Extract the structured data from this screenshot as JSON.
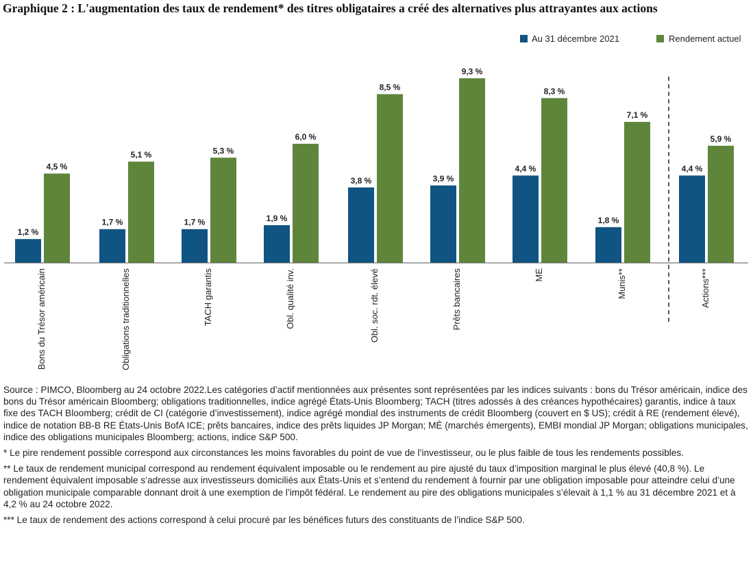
{
  "title": "Graphique 2 : L'augmentation des taux de rendement* des titres obligataires a créé des alternatives plus attrayantes aux actions",
  "colors": {
    "series1": "#0f5482",
    "series2": "#5f853b"
  },
  "chart_data": {
    "type": "bar",
    "categories": [
      "Bons du Trésor américain",
      "Obligations traditionnelles",
      "TACH garantis",
      "Obl. qualité inv.",
      "Obl. soc. rdt. élevé",
      "Prêts bancaires",
      "ME",
      "Munis**",
      "Actions***"
    ],
    "series": [
      {
        "name": "Au 31 décembre 2021",
        "values": [
          1.2,
          1.7,
          1.7,
          1.9,
          3.8,
          3.9,
          4.4,
          1.8,
          4.4
        ],
        "labels": [
          "1,2 %",
          "1,7 %",
          "1,7 %",
          "1,9 %",
          "3,8 %",
          "3,9 %",
          "4,4 %",
          "1,8 %",
          "4,4 %"
        ]
      },
      {
        "name": "Rendement actuel",
        "values": [
          4.5,
          5.1,
          5.3,
          6.0,
          8.5,
          9.3,
          8.3,
          7.1,
          5.9
        ],
        "labels": [
          "4,5 %",
          "5,1 %",
          "5,3 %",
          "6,0 %",
          "8,5 %",
          "9,3 %",
          "8,3 %",
          "7,1 %",
          "5,9 %"
        ]
      }
    ],
    "ylim": [
      0,
      10
    ],
    "grid": false,
    "legend_position": "top-right",
    "separator": "dashed line before Actions***"
  },
  "notes": [
    "Source : PIMCO, Bloomberg au 24 octobre 2022.Les catégories d’actif mentionnées aux présentes sont représentées par les indices suivants : bons du Trésor américain, indice des bons du Trésor américain Bloomberg; obligations traditionnelles, indice agrégé États-Unis Bloomberg; TACH (titres adossés à des créances hypothécaires) garantis, indice à taux fixe des TACH Bloomberg; crédit de CI (catégorie d’investissement), indice agrégé mondial des instruments de crédit Bloomberg (couvert en $ US); crédit à RE (rendement élevé), indice de notation BB-B RE États-Unis BofA ICE; prêts bancaires, indice des prêts liquides JP Morgan; MÉ (marchés émergents), EMBI mondial JP Morgan; obligations municipales, indice des obligations municipales Bloomberg; actions, indice S&P 500.",
    "* Le pire rendement possible correspond aux circonstances les moins favorables du point de vue de l’investisseur, ou le plus faible de tous les rendements possibles.",
    "** Le taux de rendement municipal correspond au rendement équivalent imposable ou le rendement au pire ajusté du taux d’imposition marginal le plus élevé (40,8 %). Le rendement équivalent imposable s’adresse aux investisseurs domiciliés aux États-Unis et s’entend du rendement à fournir par une obligation imposable pour atteindre celui d’une obligation municipale comparable donnant droit à une exemption de l’impôt fédéral. Le rendement au pire des obligations municipales s’élevait à 1,1 % au 31 décembre 2021 et à 4,2 % au 24 octobre 2022.",
    "*** Le taux de rendement des actions correspond à celui procuré par les bénéfices futurs des constituants de l’indice S&P 500."
  ]
}
